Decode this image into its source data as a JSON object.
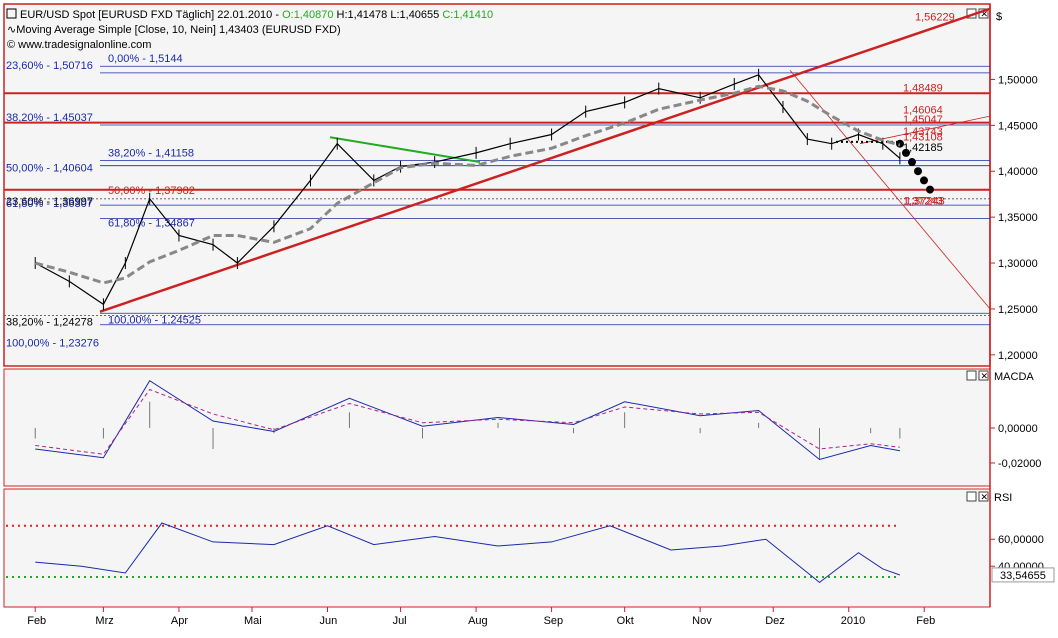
{
  "header": {
    "symbol_line_prefix": "EUR/USD Spot [EURUSD FXD  Täglich] 22.01.2010 - ",
    "open": "O:1,40870",
    "high": "H:1,41478",
    "low": "L:1,40655",
    "close": "C:1,41410",
    "ma_line": "Moving Average Simple [Close, 10, Nein] 1,43403 (EURUSD FXD)",
    "website": "© www.tradesignalonline.com",
    "currency": "$"
  },
  "panels": {
    "macd_label": "MACDA",
    "rsi_label": "RSI"
  },
  "colors": {
    "frame": "#cc2222",
    "bg": "#f5f5f5",
    "price": "#000000",
    "fib_blue": "#1a2aaa",
    "fib_red": "#cc2222",
    "ma": "#888888",
    "green": "#22aa22",
    "macd": "#1a2aaa",
    "signal": "#aa2288",
    "rsi": "#1a2aaa"
  },
  "chart_data": [
    {
      "type": "line",
      "name": "price",
      "x": [
        "2009-02-01",
        "2009-02-15",
        "2009-03-01",
        "2009-03-10",
        "2009-03-20",
        "2009-04-01",
        "2009-04-15",
        "2009-04-25",
        "2009-05-10",
        "2009-05-25",
        "2009-06-05",
        "2009-06-20",
        "2009-07-01",
        "2009-07-15",
        "2009-08-01",
        "2009-08-15",
        "2009-09-01",
        "2009-09-15",
        "2009-10-01",
        "2009-10-15",
        "2009-11-01",
        "2009-11-15",
        "2009-11-25",
        "2009-12-05",
        "2009-12-15",
        "2009-12-25",
        "2010-01-05",
        "2010-01-15",
        "2010-01-22"
      ],
      "y": [
        1.3,
        1.28,
        1.255,
        1.3,
        1.37,
        1.33,
        1.32,
        1.3,
        1.34,
        1.39,
        1.43,
        1.39,
        1.405,
        1.41,
        1.42,
        1.43,
        1.44,
        1.465,
        1.475,
        1.49,
        1.48,
        1.495,
        1.505,
        1.47,
        1.435,
        1.43,
        1.44,
        1.43,
        1.4141
      ],
      "ylim": [
        1.19,
        1.58
      ],
      "yticks": [
        "1,20000",
        "1,25000",
        "1,30000",
        "1,35000",
        "1,40000",
        "1,45000",
        "1,50000"
      ],
      "ytick_values": [
        1.2,
        1.25,
        1.3,
        1.35,
        1.4,
        1.45,
        1.5
      ],
      "xticks": [
        "Feb",
        "Mrz",
        "Apr",
        "Mai",
        "Jun",
        "Jul",
        "Aug",
        "Sep",
        "Okt",
        "Nov",
        "Dez",
        "2010",
        "Feb"
      ],
      "xtick_dates": [
        "2009-02-01",
        "2009-03-01",
        "2009-04-01",
        "2009-05-01",
        "2009-06-01",
        "2009-07-01",
        "2009-08-01",
        "2009-09-01",
        "2009-10-01",
        "2009-11-01",
        "2009-12-01",
        "2010-01-01",
        "2010-02-01"
      ],
      "xlim": [
        "2009-01-20",
        "2010-02-28"
      ],
      "levels": [
        {
          "label": "0,00% - 1,5144",
          "value": 1.5144,
          "color": "blue"
        },
        {
          "label": "23,60% - 1,50716",
          "value": 1.50716,
          "color": "blue"
        },
        {
          "label": "38,20% - 1,45037",
          "value": 1.45037,
          "color": "blue"
        },
        {
          "label": "38,20% - 1,41158",
          "value": 1.41158,
          "color": "blue"
        },
        {
          "label": "50,00% - 1,40604",
          "value": 1.40604,
          "color": "blue"
        },
        {
          "label": "50,00% - 1,37982",
          "value": 1.37982,
          "color": "red"
        },
        {
          "label": "23,60% - 1,36997",
          "value": 1.36997,
          "color": "black"
        },
        {
          "label": "61,80% - 1,36307",
          "value": 1.36307,
          "color": "blue"
        },
        {
          "label": "61,80% - 1,34867",
          "value": 1.34867,
          "color": "blue"
        },
        {
          "label": "38,20% - 1,24278",
          "value": 1.24278,
          "color": "black"
        },
        {
          "label": "100,00% - 1,24525",
          "value": 1.24525,
          "color": "blue"
        },
        {
          "label": "100,00% - 1,23276",
          "value": 1.23276,
          "color": "blue"
        }
      ],
      "right_labels": [
        {
          "label": "1,56229",
          "value": 1.56229
        },
        {
          "label": "1,48489",
          "value": 1.48489
        },
        {
          "label": "1,46064",
          "value": 1.46064
        },
        {
          "label": "1,45047",
          "value": 1.45047
        },
        {
          "label": "1,43743",
          "value": 1.43743
        },
        {
          "label": "1,43108",
          "value": 1.43108
        },
        {
          "label": "1,42185",
          "value": 1.42185
        },
        {
          "label": "1,37243",
          "value": 1.37243
        },
        {
          "label": "1,37243",
          "value": 1.37243
        }
      ]
    },
    {
      "type": "line",
      "name": "MACDA",
      "yticks": [
        "0,00000",
        "-0,02000"
      ],
      "ytick_values": [
        0.0,
        -0.02
      ],
      "ylim": [
        -0.032,
        0.032
      ],
      "x": [
        "2009-02-01",
        "2009-03-01",
        "2009-03-20",
        "2009-04-15",
        "2009-05-10",
        "2009-06-10",
        "2009-07-10",
        "2009-08-10",
        "2009-09-10",
        "2009-10-01",
        "2009-11-01",
        "2009-11-25",
        "2009-12-20",
        "2010-01-10",
        "2010-01-22"
      ],
      "macd": [
        -0.012,
        -0.017,
        0.027,
        0.004,
        -0.002,
        0.017,
        0.001,
        0.006,
        0.002,
        0.015,
        0.007,
        0.01,
        -0.018,
        -0.01,
        -0.013
      ],
      "signal": [
        -0.01,
        -0.015,
        0.022,
        0.008,
        -0.001,
        0.014,
        0.003,
        0.005,
        0.003,
        0.012,
        0.008,
        0.009,
        -0.012,
        -0.009,
        -0.011
      ]
    },
    {
      "type": "line",
      "name": "RSI",
      "yticks": [
        "60,00000",
        "40,00000"
      ],
      "ytick_values": [
        60,
        40
      ],
      "ylim": [
        12,
        95
      ],
      "last_value": "33,54655",
      "upper_line": 70,
      "lower_line": 32,
      "x": [
        "2009-02-01",
        "2009-02-20",
        "2009-03-10",
        "2009-03-25",
        "2009-04-15",
        "2009-05-10",
        "2009-06-01",
        "2009-06-20",
        "2009-07-15",
        "2009-08-10",
        "2009-09-01",
        "2009-09-25",
        "2009-10-20",
        "2009-11-10",
        "2009-11-28",
        "2009-12-20",
        "2010-01-05",
        "2010-01-15",
        "2010-01-22"
      ],
      "y": [
        43,
        40,
        35,
        72,
        58,
        56,
        70,
        56,
        62,
        55,
        58,
        70,
        52,
        55,
        60,
        28,
        50,
        38,
        33.5
      ]
    }
  ]
}
